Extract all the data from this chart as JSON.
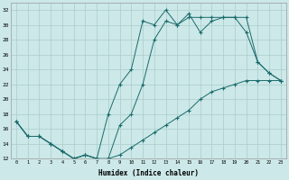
{
  "xlabel": "Humidex (Indice chaleur)",
  "bg_color": "#cce8e8",
  "line_color": "#1a6b6b",
  "grid_color": "#aacccc",
  "xlim": [
    -0.5,
    23.5
  ],
  "ylim": [
    12,
    33
  ],
  "xticks": [
    0,
    1,
    2,
    3,
    4,
    5,
    6,
    7,
    8,
    9,
    10,
    11,
    12,
    13,
    14,
    15,
    16,
    17,
    18,
    19,
    20,
    21,
    22,
    23
  ],
  "yticks": [
    12,
    14,
    16,
    18,
    20,
    22,
    24,
    26,
    28,
    30,
    32
  ],
  "line1_x": [
    0,
    1,
    2,
    3,
    4,
    5,
    6,
    7,
    8,
    9,
    10,
    11,
    12,
    13,
    14,
    15,
    16,
    17,
    18,
    19,
    20,
    21,
    22,
    23
  ],
  "line1_y": [
    17,
    15,
    15,
    14,
    13,
    12,
    12.5,
    12,
    12,
    16.5,
    18,
    22,
    28,
    30.5,
    30,
    31.5,
    29,
    30.5,
    31,
    31,
    29,
    25,
    23.5,
    22.5
  ],
  "line2_x": [
    0,
    1,
    2,
    3,
    4,
    5,
    6,
    7,
    8,
    9,
    10,
    11,
    12,
    13,
    14,
    15,
    16,
    17,
    18,
    19,
    20,
    21,
    22,
    23
  ],
  "line2_y": [
    17,
    15,
    15,
    14,
    13,
    12,
    12.5,
    12,
    18,
    22,
    24,
    30.5,
    30,
    32,
    30,
    31,
    31,
    31,
    31,
    31,
    31,
    25,
    23.5,
    22.5
  ],
  "line3_x": [
    0,
    1,
    2,
    3,
    4,
    5,
    6,
    7,
    8,
    9,
    10,
    11,
    12,
    13,
    14,
    15,
    16,
    17,
    18,
    19,
    20,
    21,
    22,
    23
  ],
  "line3_y": [
    17,
    15,
    15,
    14,
    13,
    12,
    12.5,
    12,
    12,
    12.5,
    13.5,
    14.5,
    15.5,
    16.5,
    17.5,
    18.5,
    20,
    21,
    21.5,
    22,
    22.5,
    22.5,
    22.5,
    22.5
  ]
}
